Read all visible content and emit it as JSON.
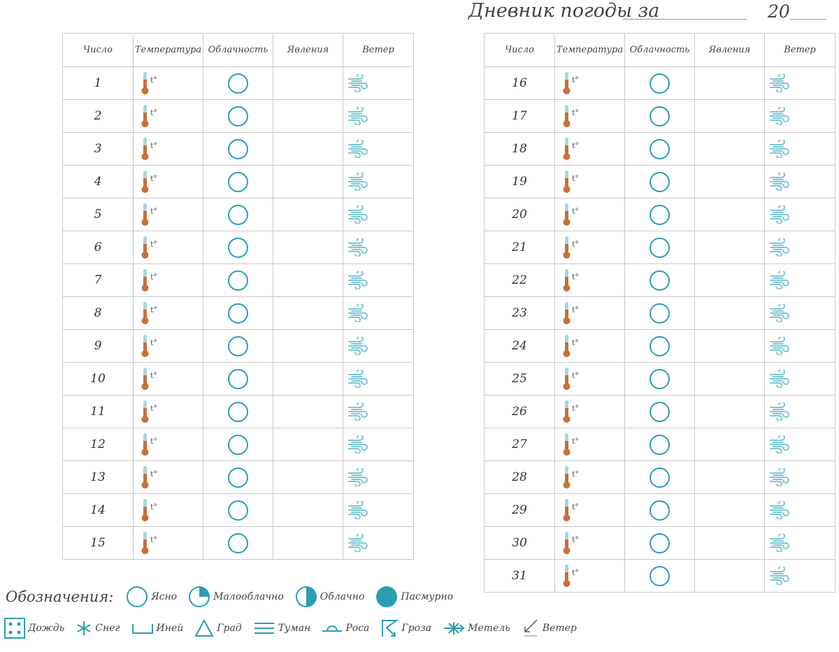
{
  "header": {
    "title": "Дневник погоды за",
    "year_prefix": "20"
  },
  "table": {
    "columns": [
      "Число",
      "Температура",
      "Облачность",
      "Явления",
      "Ветер"
    ],
    "temp_suffix": "t°",
    "left_days": [
      "1",
      "2",
      "3",
      "4",
      "5",
      "6",
      "7",
      "8",
      "9",
      "10",
      "11",
      "12",
      "13",
      "14",
      "15"
    ],
    "right_days": [
      "16",
      "17",
      "18",
      "19",
      "20",
      "21",
      "22",
      "23",
      "24",
      "25",
      "26",
      "27",
      "28",
      "29",
      "30",
      "31"
    ]
  },
  "legend": {
    "title": "Обозначения:",
    "cloud_items": [
      {
        "icon": "clear-circle-icon",
        "label": "Ясно"
      },
      {
        "icon": "quarter-cloud-icon",
        "label": "Малооблачно"
      },
      {
        "icon": "half-cloud-icon",
        "label": "Облачно"
      },
      {
        "icon": "overcast-circle-icon",
        "label": "Пасмурно"
      }
    ],
    "phenomena_items": [
      {
        "icon": "rain-icon",
        "label": "Дождь"
      },
      {
        "icon": "snow-icon",
        "label": "Снег"
      },
      {
        "icon": "frost-icon",
        "label": "Иней"
      },
      {
        "icon": "hail-icon",
        "label": "Град"
      },
      {
        "icon": "fog-icon",
        "label": "Туман"
      },
      {
        "icon": "dew-icon",
        "label": "Роса"
      },
      {
        "icon": "thunderstorm-icon",
        "label": "Гроза"
      },
      {
        "icon": "blizzard-icon",
        "label": "Метель"
      },
      {
        "icon": "wind-arrow-icon",
        "label": "Ветер"
      }
    ]
  },
  "colors": {
    "accent": "#2a9fb1",
    "wind": "#7cc6d3",
    "thermo_bulb": "#c8703a",
    "thermo_tube": "#a9d6df"
  }
}
